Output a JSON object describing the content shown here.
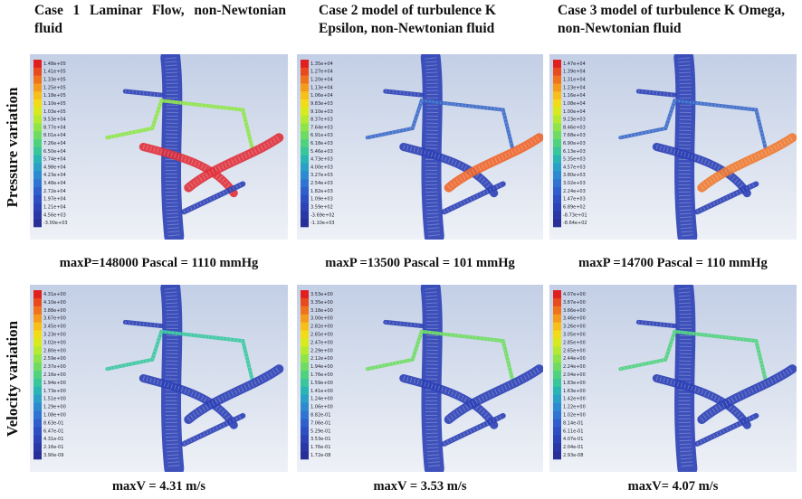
{
  "columns": [
    {
      "title": "Case 1 Laminar Flow, non-Newtonian fluid"
    },
    {
      "title": "Case 2 model of turbulence K Epsilon, non-Newtonian fluid"
    },
    {
      "title": "Case 3 model of turbulence K Omega, non-Newtonian fluid"
    }
  ],
  "rows": [
    {
      "label": "Pressure variation",
      "panels": [
        {
          "legend": [
            "1.48e+05",
            "1.41e+05",
            "1.33e+05",
            "1.25e+05",
            "1.18e+05",
            "1.10e+05",
            "1.03e+05",
            "9.53e+04",
            "8.77e+04",
            "8.01e+04",
            "7.26e+04",
            "6.50e+04",
            "5.74e+04",
            "4.98e+04",
            "4.23e+04",
            "3.48e+04",
            "2.72e+04",
            "1.97e+04",
            "1.21e+04",
            "4.56e+03",
            "-3.00e+03"
          ],
          "caption": "maxP=148000 Pascal = 1110 mmHg"
        },
        {
          "legend": [
            "1.35e+04",
            "1.27e+04",
            "1.20e+04",
            "1.13e+04",
            "1.06e+04",
            "9.83e+03",
            "9.10e+03",
            "8.37e+03",
            "7.64e+03",
            "6.91e+03",
            "6.18e+03",
            "5.46e+03",
            "4.73e+03",
            "4.00e+03",
            "3.27e+03",
            "2.54e+03",
            "1.82e+03",
            "1.09e+03",
            "3.59e+02",
            "-3.69e+02",
            "-1.10e+03"
          ],
          "caption": "maxP =13500 Pascal = 101 mmHg"
        },
        {
          "legend": [
            "1.47e+04",
            "1.39e+04",
            "1.31e+04",
            "1.23e+04",
            "1.16e+04",
            "1.08e+04",
            "1.00e+04",
            "9.23e+03",
            "8.46e+03",
            "7.68e+03",
            "6.90e+03",
            "6.13e+03",
            "5.35e+03",
            "4.57e+03",
            "3.80e+03",
            "3.02e+03",
            "2.24e+03",
            "1.47e+03",
            "6.89e+02",
            "-8.73e+01",
            "-8.64e+02"
          ],
          "caption": "maxP =14700 Pascal = 110 mmHg"
        }
      ]
    },
    {
      "label": "Velocity variation",
      "panels": [
        {
          "legend": [
            "4.31e+00",
            "4.10e+00",
            "3.88e+00",
            "3.67e+00",
            "3.45e+00",
            "3.23e+00",
            "3.02e+00",
            "2.80e+00",
            "2.59e+00",
            "2.37e+00",
            "2.16e+00",
            "1.94e+00",
            "1.73e+00",
            "1.51e+00",
            "1.29e+00",
            "1.08e+00",
            "8.63e-01",
            "6.47e-01",
            "4.31e-01",
            "2.16e-01",
            "3.90e-09"
          ],
          "caption": "maxV = 4.31 m/s"
        },
        {
          "legend": [
            "3.53e+00",
            "3.35e+00",
            "3.18e+00",
            "3.00e+00",
            "2.82e+00",
            "2.65e+00",
            "2.47e+00",
            "2.29e+00",
            "2.12e+00",
            "1.94e+00",
            "1.76e+00",
            "1.59e+00",
            "1.41e+00",
            "1.24e+00",
            "1.06e+00",
            "8.82e-01",
            "7.06e-01",
            "5.29e-01",
            "3.53e-01",
            "1.76e-01",
            "1.72e-08"
          ],
          "caption": "maxV = 3.53 m/s"
        },
        {
          "legend": [
            "4.07e+00",
            "3.87e+00",
            "3.66e+00",
            "3.46e+00",
            "3.26e+00",
            "3.05e+00",
            "2.85e+00",
            "2.65e+00",
            "2.44e+00",
            "2.24e+00",
            "2.04e+00",
            "1.83e+00",
            "1.63e+00",
            "1.42e+00",
            "1.22e+00",
            "1.02e+00",
            "8.14e-01",
            "6.11e-01",
            "4.07e-01",
            "2.04e-01",
            "2.93e-08"
          ],
          "caption": "maxV= 4.07 m/s"
        }
      ]
    }
  ]
}
